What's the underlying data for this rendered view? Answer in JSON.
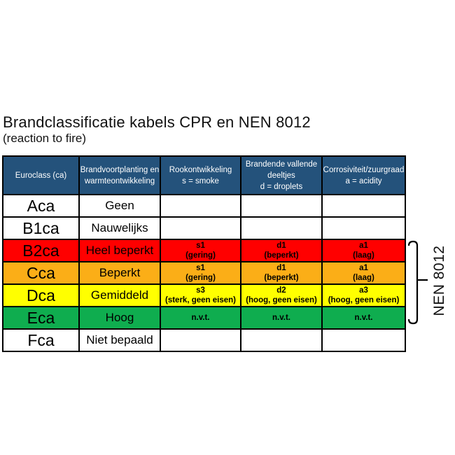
{
  "title": "Brandclassificatie kabels CPR en NEN 8012",
  "subtitle": "(reaction to fire)",
  "side_label": "NEN 8012",
  "colors": {
    "header_bg": "#24527B",
    "header_text": "#FFFFFF",
    "red": "#FF0000",
    "orange": "#FBAE17",
    "yellow": "#FFFF00",
    "green": "#0FAD4F",
    "white": "#FFFFFF",
    "border": "#000000"
  },
  "table": {
    "headers": [
      {
        "id": "euroclass",
        "lines": [
          "Euroclass (ca)"
        ]
      },
      {
        "id": "brandvoortplanting",
        "lines": [
          "Brandvoortplanting en",
          "warmteontwikkeling"
        ]
      },
      {
        "id": "rookontwikkeling",
        "lines": [
          "Rookontwikkeling",
          "s = smoke"
        ]
      },
      {
        "id": "brandende-deeltjes",
        "lines": [
          "Brandende vallende",
          "deeltjes",
          "d = droplets"
        ]
      },
      {
        "id": "corrosiviteit",
        "lines": [
          "Corrosiviteit/zuurgraad",
          "a = acidity"
        ]
      }
    ],
    "rows": [
      {
        "euroclass": "Aca",
        "desc": "Geen",
        "smoke": [],
        "droplets": [],
        "acidity": [],
        "bg": "white"
      },
      {
        "euroclass": "B1ca",
        "desc": "Nauwelijks",
        "smoke": [],
        "droplets": [],
        "acidity": [],
        "bg": "white"
      },
      {
        "euroclass": "B2ca",
        "desc": "Heel beperkt",
        "smoke": [
          "s1",
          "(gering)"
        ],
        "droplets": [
          "d1",
          "(beperkt)"
        ],
        "acidity": [
          "a1",
          "(laag)"
        ],
        "bg": "red"
      },
      {
        "euroclass": "Cca",
        "desc": "Beperkt",
        "smoke": [
          "s1",
          "(gering)"
        ],
        "droplets": [
          "d1",
          "(beperkt)"
        ],
        "acidity": [
          "a1",
          "(laag)"
        ],
        "bg": "orange"
      },
      {
        "euroclass": "Dca",
        "desc": "Gemiddeld",
        "smoke": [
          "s3",
          "(sterk, geen eisen)"
        ],
        "droplets": [
          "d2",
          "(hoog, geen eisen)"
        ],
        "acidity": [
          "a3",
          "(hoog, geen eisen)"
        ],
        "bg": "yellow"
      },
      {
        "euroclass": "Eca",
        "desc": "Hoog",
        "smoke": [
          "n.v.t."
        ],
        "droplets": [
          "n.v.t."
        ],
        "acidity": [
          "n.v.t."
        ],
        "bg": "green"
      },
      {
        "euroclass": "Fca",
        "desc": "Niet bepaald",
        "smoke": [],
        "droplets": [],
        "acidity": [],
        "bg": "white"
      }
    ]
  },
  "bracket": {
    "target_rows": "B2ca-Eca"
  }
}
